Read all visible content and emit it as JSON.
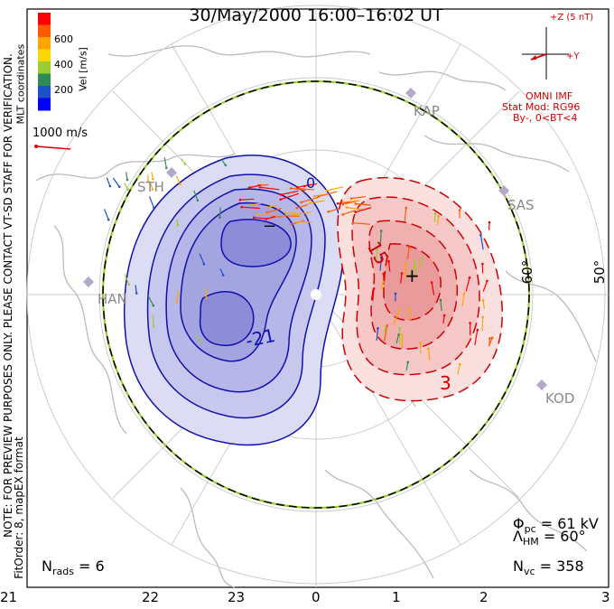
{
  "header": {
    "title": "30/May/2000 16:00–16:02 UT"
  },
  "side_notes": {
    "coordinates": "MLT coordinates",
    "note": "NOTE: FOR PREVIEW PURPOSES ONLY. PLEASE CONTACT VT-SD STAFF FOR VERIFICATION.",
    "fitorder": "FitOrder: 8, mapEX format"
  },
  "colorbar": {
    "label": "Vel [m/s]",
    "ticks": [
      "600",
      "400",
      "200"
    ],
    "colors": [
      "#ff0000",
      "#ff5a00",
      "#ffa500",
      "#ffd700",
      "#9acd32",
      "#2e8b57",
      "#1e50c8",
      "#0000ff"
    ]
  },
  "scale_vector": {
    "label": "1000 m/s"
  },
  "imf": {
    "z_label": "+Z (5 nT)",
    "y_label": "+Y",
    "source": "OMNI IMF",
    "model": "Stat Mod: RG96",
    "condition": "By-, 0<BT<4"
  },
  "stations": [
    "KAP",
    "SAS",
    "STH",
    "HAN",
    "KOD"
  ],
  "contours": {
    "label_neg": "-21",
    "label_pos_1": "15",
    "label_pos_2": "3",
    "min_marker": "−",
    "max_marker": "+",
    "zero": "0"
  },
  "lat_labels": [
    "60°",
    "50°"
  ],
  "stats": {
    "phi_pc": "Φ",
    "phi_pc_sub": "pc",
    "phi_pc_val": "= 61 kV",
    "lambda_hm": "Λ",
    "lambda_hm_sub": "HM",
    "lambda_hm_val": "= 60°",
    "n_vc": "N",
    "n_vc_sub": "vc",
    "n_vc_val": "= 358",
    "n_rads": "N",
    "n_rads_sub": "rads",
    "n_rads_val": "= 6"
  },
  "mlt_ticks": [
    "21",
    "22",
    "23",
    "0",
    "1",
    "2",
    "3"
  ],
  "colors": {
    "neg_fill": "#c8c8ee",
    "pos_fill": "#f4c0c0",
    "neg_line": "#1010b0",
    "pos_line": "#d00000"
  }
}
